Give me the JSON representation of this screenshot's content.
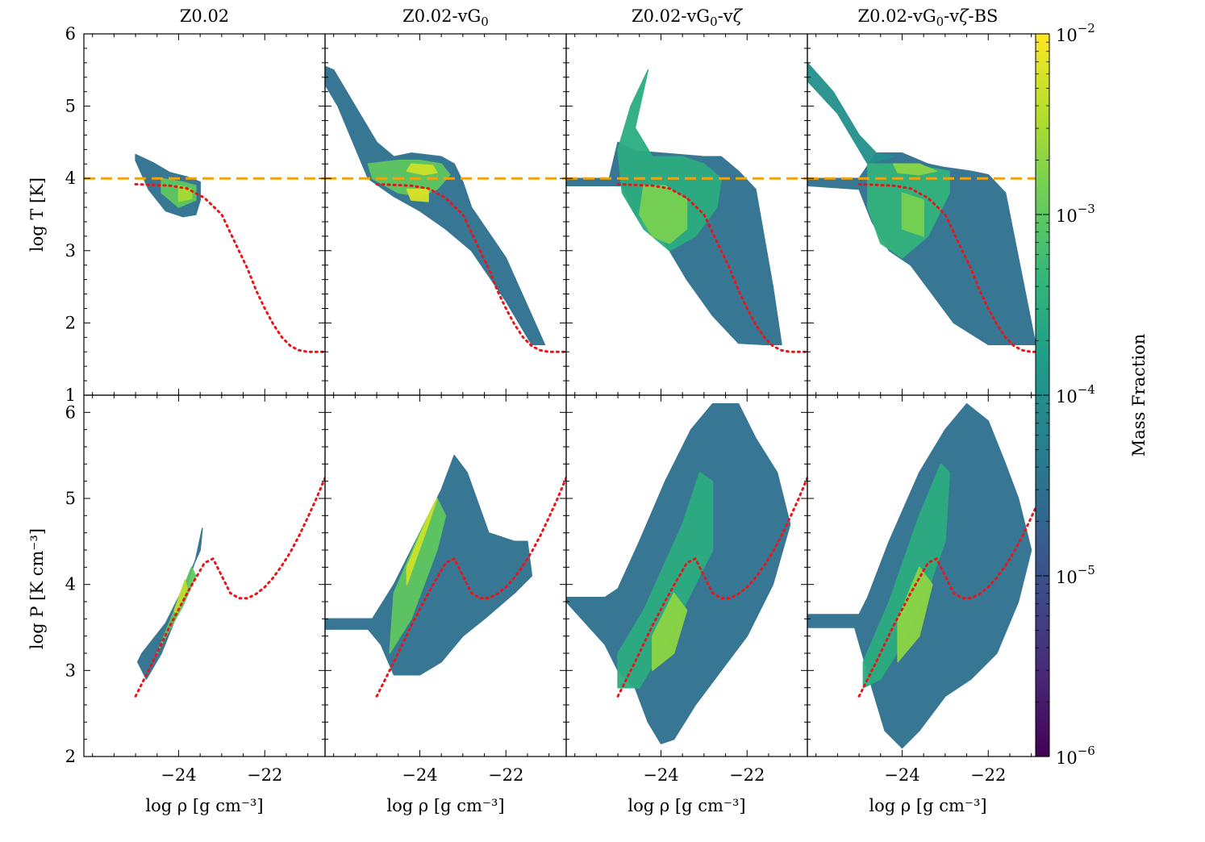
{
  "figure": {
    "colorbar": {
      "label": "Mass Fraction",
      "scale": "log",
      "range": [
        1e-06,
        0.01
      ],
      "colormap": "viridis",
      "colormap_stops": [
        "#440154",
        "#482878",
        "#3e4989",
        "#31688e",
        "#26828e",
        "#1f9e89",
        "#35b779",
        "#6ece58",
        "#b5de2b",
        "#fde725"
      ],
      "ticks": [
        {
          "value": 0.01,
          "base": "10",
          "exp": "−2"
        },
        {
          "value": 0.001,
          "base": "10",
          "exp": "−3"
        },
        {
          "value": 0.0001,
          "base": "10",
          "exp": "−4"
        },
        {
          "value": 1e-05,
          "base": "10",
          "exp": "−5"
        },
        {
          "value": 1e-06,
          "base": "10",
          "exp": "−6"
        }
      ]
    },
    "columns": [
      {
        "base": "Z0.02",
        "parts": []
      },
      {
        "base": "Z0.02-vG",
        "parts": [
          {
            "t": "0",
            "sub": true
          }
        ]
      },
      {
        "base": "Z0.02-vG",
        "parts": [
          {
            "t": "0",
            "sub": true
          },
          {
            "t": "-v",
            "sub": false
          },
          {
            "t": "ζ",
            "sub": false,
            "italic": true
          }
        ]
      },
      {
        "base": "Z0.02-vG",
        "parts": [
          {
            "t": "0",
            "sub": true
          },
          {
            "t": "-v",
            "sub": false
          },
          {
            "t": "ζ",
            "sub": false,
            "italic": true
          },
          {
            "t": "-BS",
            "sub": false
          }
        ]
      }
    ],
    "x_axis": {
      "label": "log ρ [g cm⁻³]",
      "range": [
        -26.2,
        -20.6
      ],
      "ticks": [
        {
          "value": -24,
          "label": "−24"
        },
        {
          "value": -22,
          "label": "−22"
        }
      ],
      "minor_step": 0.5
    },
    "y_axis_top": {
      "label": "log T [K]",
      "range": [
        1,
        6
      ],
      "ticks": [
        {
          "value": 1,
          "label": "1"
        },
        {
          "value": 2,
          "label": "2"
        },
        {
          "value": 3,
          "label": "3"
        },
        {
          "value": 4,
          "label": "4"
        },
        {
          "value": 5,
          "label": "5"
        },
        {
          "value": 6,
          "label": "6"
        }
      ],
      "minor_step": 0.2
    },
    "y_axis_bottom": {
      "label": "log P [K cm⁻³]",
      "range": [
        2,
        6.2
      ],
      "ticks": [
        {
          "value": 2,
          "label": "2"
        },
        {
          "value": 3,
          "label": "3"
        },
        {
          "value": 4,
          "label": "4"
        },
        {
          "value": 5,
          "label": "5"
        },
        {
          "value": 6,
          "label": "6"
        }
      ],
      "minor_step": 0.2
    }
  },
  "chart_data": {
    "type": "heatmap",
    "panels_layout": "2 rows x 4 columns; shared x-axis log ρ; top row log T, bottom row log P",
    "reference_lines": {
      "temperature_threshold": {
        "quantity": "log T",
        "value": 4.0,
        "style": "dashed",
        "color": "#f0a30a",
        "panels": "top row, all columns"
      },
      "equilibrium_curve_T": {
        "style": "dotted",
        "color": "#e8151b",
        "x": [
          -25.0,
          -24.6,
          -24.2,
          -23.8,
          -23.4,
          -23.0,
          -22.8,
          -22.6,
          -22.4,
          -22.2,
          -22.0,
          -21.8,
          -21.6,
          -21.4,
          -21.2,
          -21.0,
          -20.8,
          -20.6
        ],
        "y": [
          3.92,
          3.91,
          3.9,
          3.86,
          3.73,
          3.5,
          3.25,
          3.0,
          2.75,
          2.45,
          2.2,
          1.98,
          1.8,
          1.68,
          1.62,
          1.6,
          1.6,
          1.6
        ]
      },
      "equilibrium_curve_P": {
        "style": "dotted",
        "color": "#e8151b",
        "x": [
          -25.0,
          -24.6,
          -24.2,
          -23.8,
          -23.4,
          -23.2,
          -23.0,
          -22.8,
          -22.6,
          -22.4,
          -22.2,
          -22.0,
          -21.8,
          -21.6,
          -21.4,
          -21.2,
          -21.0,
          -20.8,
          -20.6
        ],
        "y": [
          2.7,
          3.1,
          3.52,
          3.9,
          4.25,
          4.3,
          4.1,
          3.9,
          3.84,
          3.84,
          3.89,
          3.97,
          4.08,
          4.22,
          4.38,
          4.57,
          4.78,
          5.0,
          5.24
        ]
      }
    },
    "series": [
      {
        "name": "Z0.02",
        "T_regions": [
          {
            "x": [
              -25.0,
              -24.6,
              -24.2,
              -23.8,
              -23.5,
              -23.5,
              -23.6,
              -23.9,
              -24.3,
              -24.7,
              -25.0
            ],
            "y": [
              4.33,
              4.22,
              4.08,
              4.02,
              3.95,
              3.7,
              3.5,
              3.47,
              3.55,
              3.85,
              4.25
            ],
            "level": 3e-05
          },
          {
            "x": [
              -24.4,
              -23.9,
              -23.6,
              -23.6,
              -24.0,
              -24.4
            ],
            "y": [
              4.0,
              3.95,
              3.9,
              3.7,
              3.6,
              3.8
            ],
            "level": 0.001
          },
          {
            "x": [
              -24.0,
              -23.7,
              -23.7,
              -24.0
            ],
            "y": [
              3.9,
              3.85,
              3.72,
              3.68
            ],
            "level": 0.003
          }
        ],
        "P_regions": [
          {
            "x": [
              -24.85,
              -24.3,
              -23.9,
              -23.5,
              -23.45,
              -23.6,
              -24.0,
              -24.4,
              -24.75,
              -24.95
            ],
            "y": [
              3.2,
              3.55,
              3.95,
              4.4,
              4.65,
              4.3,
              3.7,
              3.2,
              2.9,
              3.1
            ],
            "level": 3e-05
          },
          {
            "x": [
              -24.4,
              -23.9,
              -23.6,
              -23.7,
              -24.1,
              -24.5
            ],
            "y": [
              3.3,
              3.75,
              4.1,
              4.2,
              3.7,
              3.2
            ],
            "level": 0.001
          },
          {
            "x": [
              -24.05,
              -23.8,
              -23.85,
              -24.1
            ],
            "y": [
              3.65,
              3.95,
              4.05,
              3.7
            ],
            "level": 0.004
          }
        ]
      },
      {
        "name": "Z0.02-vG0",
        "T_regions": [
          {
            "x": [
              -26.2,
              -26.0,
              -25.5,
              -25.0,
              -24.6,
              -24.2,
              -23.5,
              -23.2,
              -23.0,
              -22.8,
              -22.0,
              -21.4,
              -21.1,
              -21.4,
              -22.0,
              -22.8,
              -23.4,
              -24.0,
              -24.6,
              -25.2,
              -25.9,
              -26.2
            ],
            "y": [
              5.55,
              5.5,
              5.0,
              4.5,
              4.3,
              4.35,
              4.3,
              4.2,
              3.95,
              3.6,
              2.9,
              2.1,
              1.7,
              1.7,
              2.3,
              3.0,
              3.3,
              3.55,
              3.75,
              4.0,
              5.0,
              5.3
            ],
            "level": 3e-05
          },
          {
            "x": [
              -25.2,
              -24.5,
              -24.0,
              -23.5,
              -23.3,
              -23.6,
              -24.0,
              -24.5,
              -25.1
            ],
            "y": [
              4.2,
              4.25,
              4.25,
              4.2,
              4.05,
              3.85,
              3.75,
              3.8,
              4.0
            ],
            "level": 0.001
          },
          {
            "x": [
              -24.2,
              -23.7,
              -23.6,
              -23.9,
              -24.3
            ],
            "y": [
              4.2,
              4.18,
              4.08,
              4.05,
              4.1
            ],
            "level": 0.005
          },
          {
            "x": [
              -24.3,
              -23.8,
              -23.8,
              -24.2
            ],
            "y": [
              3.85,
              3.85,
              3.68,
              3.7
            ],
            "level": 0.006
          }
        ],
        "P_regions": [
          {
            "x": [
              -26.2,
              -25.1,
              -24.6,
              -24.0,
              -23.5,
              -23.2,
              -22.9,
              -22.4,
              -21.8,
              -21.5,
              -21.4,
              -21.8,
              -22.5,
              -23.0,
              -23.5,
              -24.0,
              -24.6,
              -24.9,
              -25.2,
              -26.2
            ],
            "y": [
              3.6,
              3.6,
              4.0,
              4.6,
              5.1,
              5.5,
              5.3,
              4.6,
              4.5,
              4.5,
              4.1,
              3.9,
              3.6,
              3.4,
              3.1,
              2.95,
              2.95,
              3.3,
              3.48,
              3.48
            ],
            "level": 3e-05
          },
          {
            "x": [
              -24.6,
              -24.0,
              -23.6,
              -23.4,
              -23.6,
              -24.2,
              -24.7
            ],
            "y": [
              3.9,
              4.6,
              5.0,
              4.8,
              4.4,
              3.6,
              3.2
            ],
            "level": 0.001
          },
          {
            "x": [
              -24.3,
              -23.8,
              -23.6,
              -23.8,
              -24.3
            ],
            "y": [
              4.2,
              4.8,
              5.0,
              4.7,
              4.0
            ],
            "level": 0.005
          }
        ]
      },
      {
        "name": "Z0.02-vG0-vζ",
        "T_regions": [
          {
            "x": [
              -26.2,
              -25.2,
              -25.0,
              -24.6,
              -24.0,
              -23.0,
              -22.6,
              -22.2,
              -21.8,
              -21.4,
              -21.2,
              -21.6,
              -22.2,
              -22.8,
              -23.4,
              -23.8,
              -24.0,
              -24.6,
              -24.9,
              -26.2
            ],
            "y": [
              4.0,
              4.0,
              4.5,
              4.38,
              4.35,
              4.3,
              4.3,
              4.1,
              3.85,
              2.5,
              1.7,
              1.7,
              1.72,
              2.1,
              2.6,
              3.0,
              3.2,
              3.5,
              3.9,
              3.9
            ],
            "level": 3e-05
          },
          {
            "x": [
              -25.0,
              -24.7,
              -24.3,
              -24.6,
              -24.2,
              -23.5,
              -23.0,
              -22.6,
              -22.7,
              -23.2,
              -23.8,
              -24.4,
              -24.9
            ],
            "y": [
              4.4,
              5.0,
              5.5,
              4.7,
              4.3,
              4.3,
              4.2,
              4.0,
              3.6,
              3.2,
              3.0,
              3.3,
              3.8
            ],
            "level": 0.0003
          },
          {
            "x": [
              -24.4,
              -23.9,
              -23.4,
              -23.4,
              -23.8,
              -24.2,
              -24.5
            ],
            "y": [
              3.9,
              3.9,
              3.7,
              3.3,
              3.1,
              3.2,
              3.5
            ],
            "level": 0.0015
          }
        ],
        "P_regions": [
          {
            "x": [
              -26.2,
              -25.3,
              -25.0,
              -24.5,
              -23.9,
              -23.3,
              -22.8,
              -22.2,
              -21.8,
              -21.3,
              -21.0,
              -21.4,
              -22.0,
              -22.6,
              -23.2,
              -23.7,
              -24.0,
              -24.3,
              -24.6,
              -25.0,
              -25.3,
              -26.2
            ],
            "y": [
              3.85,
              3.85,
              3.95,
              4.5,
              5.2,
              5.8,
              6.1,
              6.1,
              5.7,
              5.3,
              4.7,
              4.0,
              3.4,
              3.0,
              2.6,
              2.2,
              2.15,
              2.4,
              2.8,
              3.0,
              3.3,
              3.8
            ],
            "level": 3e-05
          },
          {
            "x": [
              -25.0,
              -24.4,
              -23.5,
              -23.1,
              -22.8,
              -22.8,
              -23.3,
              -23.9,
              -24.5,
              -25.0
            ],
            "y": [
              3.2,
              3.7,
              4.7,
              5.3,
              5.2,
              4.4,
              3.9,
              3.3,
              2.8,
              2.8
            ],
            "level": 0.0003
          },
          {
            "x": [
              -24.2,
              -23.7,
              -23.4,
              -23.7,
              -24.2
            ],
            "y": [
              3.4,
              3.9,
              3.7,
              3.2,
              3.0
            ],
            "level": 0.002
          }
        ]
      },
      {
        "name": "Z0.02-vG0-vζ-BS",
        "T_regions": [
          {
            "x": [
              -26.2,
              -25.0,
              -24.6,
              -24.0,
              -23.4,
              -23.0,
              -22.4,
              -22.0,
              -21.6,
              -21.2,
              -20.9,
              -21.4,
              -22.0,
              -22.8,
              -23.3,
              -23.8,
              -24.3,
              -24.7,
              -25.0,
              -26.2
            ],
            "y": [
              4.0,
              4.0,
              4.35,
              4.35,
              4.2,
              4.15,
              4.1,
              4.05,
              3.8,
              2.6,
              1.7,
              1.7,
              1.7,
              2.0,
              2.4,
              2.8,
              3.0,
              3.4,
              3.85,
              3.9
            ],
            "level": 3e-05
          },
          {
            "x": [
              -26.2,
              -25.6,
              -25.0,
              -24.6,
              -24.2,
              -24.8,
              -25.5,
              -26.2
            ],
            "y": [
              5.6,
              5.2,
              4.6,
              4.35,
              4.3,
              4.2,
              4.9,
              5.35
            ],
            "level": 0.0001
          },
          {
            "x": [
              -24.8,
              -24.0,
              -23.4,
              -22.9,
              -22.9,
              -23.4,
              -24.0,
              -24.5,
              -24.8
            ],
            "y": [
              4.2,
              4.2,
              4.15,
              4.1,
              3.8,
              3.2,
              2.9,
              3.1,
              3.6
            ],
            "level": 0.0004
          },
          {
            "x": [
              -24.2,
              -23.6,
              -23.2,
              -23.6,
              -24.1
            ],
            "y": [
              4.2,
              4.2,
              4.1,
              4.05,
              4.08
            ],
            "level": 0.002
          },
          {
            "x": [
              -24.0,
              -23.5,
              -23.5,
              -24.0
            ],
            "y": [
              3.8,
              3.7,
              3.2,
              3.3
            ],
            "level": 0.0015
          }
        ],
        "P_regions": [
          {
            "x": [
              -26.2,
              -25.0,
              -24.8,
              -24.3,
              -23.6,
              -23.0,
              -22.5,
              -22.0,
              -21.6,
              -21.3,
              -21.0,
              -21.3,
              -21.8,
              -22.4,
              -23.0,
              -23.6,
              -24.0,
              -24.4,
              -24.7,
              -25.1,
              -26.2
            ],
            "y": [
              3.65,
              3.65,
              3.85,
              4.5,
              5.3,
              5.8,
              6.1,
              5.9,
              5.4,
              5.0,
              4.4,
              3.8,
              3.2,
              2.9,
              2.7,
              2.3,
              2.1,
              2.3,
              2.8,
              3.5,
              3.5
            ],
            "level": 3e-05
          },
          {
            "x": [
              -24.9,
              -24.3,
              -23.6,
              -23.1,
              -22.9,
              -23.0,
              -23.5,
              -24.0,
              -24.5,
              -24.9
            ],
            "y": [
              3.1,
              3.8,
              4.8,
              5.4,
              5.3,
              4.5,
              3.8,
              3.3,
              2.9,
              2.8
            ],
            "level": 0.0003
          },
          {
            "x": [
              -24.1,
              -23.6,
              -23.3,
              -23.6,
              -24.1
            ],
            "y": [
              3.6,
              4.2,
              4.0,
              3.4,
              3.1
            ],
            "level": 0.002
          }
        ]
      }
    ]
  }
}
